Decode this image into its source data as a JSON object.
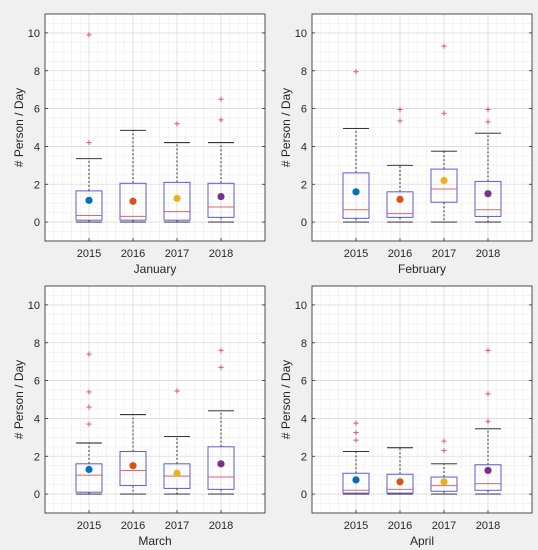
{
  "colors": {
    "box": "#5b5bd6",
    "median": "#e06666",
    "whisker": "#1a1a1a",
    "outlier": "#e0507a",
    "grid": "#dcdcdc",
    "mean_2015": "#0072bd",
    "mean_2016": "#d95319",
    "mean_2017": "#edb120",
    "mean_2018": "#7e2f8e"
  },
  "chart_data": [
    {
      "type": "box",
      "xlabel": "January",
      "ylabel": "# Person / Day",
      "ylim": [
        -1,
        11
      ],
      "yticks": [
        "0",
        "2",
        "4",
        "6",
        "8",
        "10"
      ],
      "categories": [
        "2015",
        "2016",
        "2017",
        "2018"
      ],
      "grid": true,
      "boxes": [
        {
          "min": 0,
          "q1": 0.1,
          "median": 0.35,
          "q3": 1.65,
          "max": 3.35,
          "mean": 1.15,
          "outliers": [
            4.2,
            9.9
          ]
        },
        {
          "min": 0,
          "q1": 0.1,
          "median": 0.3,
          "q3": 2.05,
          "max": 4.85,
          "mean": 1.1,
          "outliers": []
        },
        {
          "min": 0,
          "q1": 0.1,
          "median": 0.55,
          "q3": 2.1,
          "max": 4.2,
          "mean": 1.25,
          "outliers": [
            5.2
          ]
        },
        {
          "min": 0,
          "q1": 0.25,
          "median": 0.8,
          "q3": 2.05,
          "max": 4.2,
          "mean": 1.35,
          "outliers": [
            5.4,
            6.5
          ]
        }
      ]
    },
    {
      "type": "box",
      "xlabel": "February",
      "ylabel": "# Person / Day",
      "ylim": [
        -1,
        11
      ],
      "yticks": [
        "0",
        "2",
        "4",
        "6",
        "8",
        "10"
      ],
      "categories": [
        "2015",
        "2016",
        "2017",
        "2018"
      ],
      "grid": true,
      "boxes": [
        {
          "min": 0,
          "q1": 0.2,
          "median": 0.65,
          "q3": 2.6,
          "max": 4.95,
          "mean": 1.6,
          "outliers": [
            7.95
          ]
        },
        {
          "min": 0,
          "q1": 0.25,
          "median": 0.45,
          "q3": 1.6,
          "max": 3.0,
          "mean": 1.2,
          "outliers": [
            5.35,
            5.95
          ]
        },
        {
          "min": 0,
          "q1": 1.05,
          "median": 1.75,
          "q3": 2.8,
          "max": 3.75,
          "mean": 2.2,
          "outliers": [
            5.75,
            9.3
          ]
        },
        {
          "min": 0,
          "q1": 0.3,
          "median": 0.65,
          "q3": 2.15,
          "max": 4.7,
          "mean": 1.5,
          "outliers": [
            5.3,
            5.95
          ]
        }
      ]
    },
    {
      "type": "box",
      "xlabel": "March",
      "ylabel": "# Person / Day",
      "ylim": [
        -1,
        11
      ],
      "yticks": [
        "0",
        "2",
        "4",
        "6",
        "8",
        "10"
      ],
      "categories": [
        "2015",
        "2016",
        "2017",
        "2018"
      ],
      "grid": true,
      "boxes": [
        {
          "min": 0,
          "q1": 0.1,
          "median": 1.0,
          "q3": 1.6,
          "max": 2.7,
          "mean": 1.3,
          "outliers": [
            3.7,
            4.6,
            5.4,
            7.4
          ]
        },
        {
          "min": 0,
          "q1": 0.45,
          "median": 1.25,
          "q3": 2.25,
          "max": 4.2,
          "mean": 1.5,
          "outliers": []
        },
        {
          "min": 0,
          "q1": 0.3,
          "median": 0.95,
          "q3": 1.6,
          "max": 3.05,
          "mean": 1.1,
          "outliers": [
            5.45
          ]
        },
        {
          "min": 0,
          "q1": 0.25,
          "median": 0.9,
          "q3": 2.5,
          "max": 4.4,
          "mean": 1.6,
          "outliers": [
            6.7,
            7.6
          ]
        }
      ]
    },
    {
      "type": "box",
      "xlabel": "April",
      "ylabel": "# Person / Day",
      "ylim": [
        -1,
        11
      ],
      "yticks": [
        "0",
        "2",
        "4",
        "6",
        "8",
        "10"
      ],
      "categories": [
        "2015",
        "2016",
        "2017",
        "2018"
      ],
      "grid": true,
      "boxes": [
        {
          "min": 0,
          "q1": 0.05,
          "median": 0.2,
          "q3": 1.1,
          "max": 2.25,
          "mean": 0.75,
          "outliers": [
            2.85,
            3.25,
            3.75
          ]
        },
        {
          "min": 0,
          "q1": 0.05,
          "median": 0.25,
          "q3": 1.05,
          "max": 2.45,
          "mean": 0.65,
          "outliers": []
        },
        {
          "min": 0,
          "q1": 0.15,
          "median": 0.45,
          "q3": 0.9,
          "max": 1.6,
          "mean": 0.65,
          "outliers": [
            2.3,
            2.8
          ]
        },
        {
          "min": 0,
          "q1": 0.2,
          "median": 0.55,
          "q3": 1.55,
          "max": 3.45,
          "mean": 1.25,
          "outliers": [
            3.85,
            5.3,
            7.6
          ]
        }
      ]
    }
  ]
}
